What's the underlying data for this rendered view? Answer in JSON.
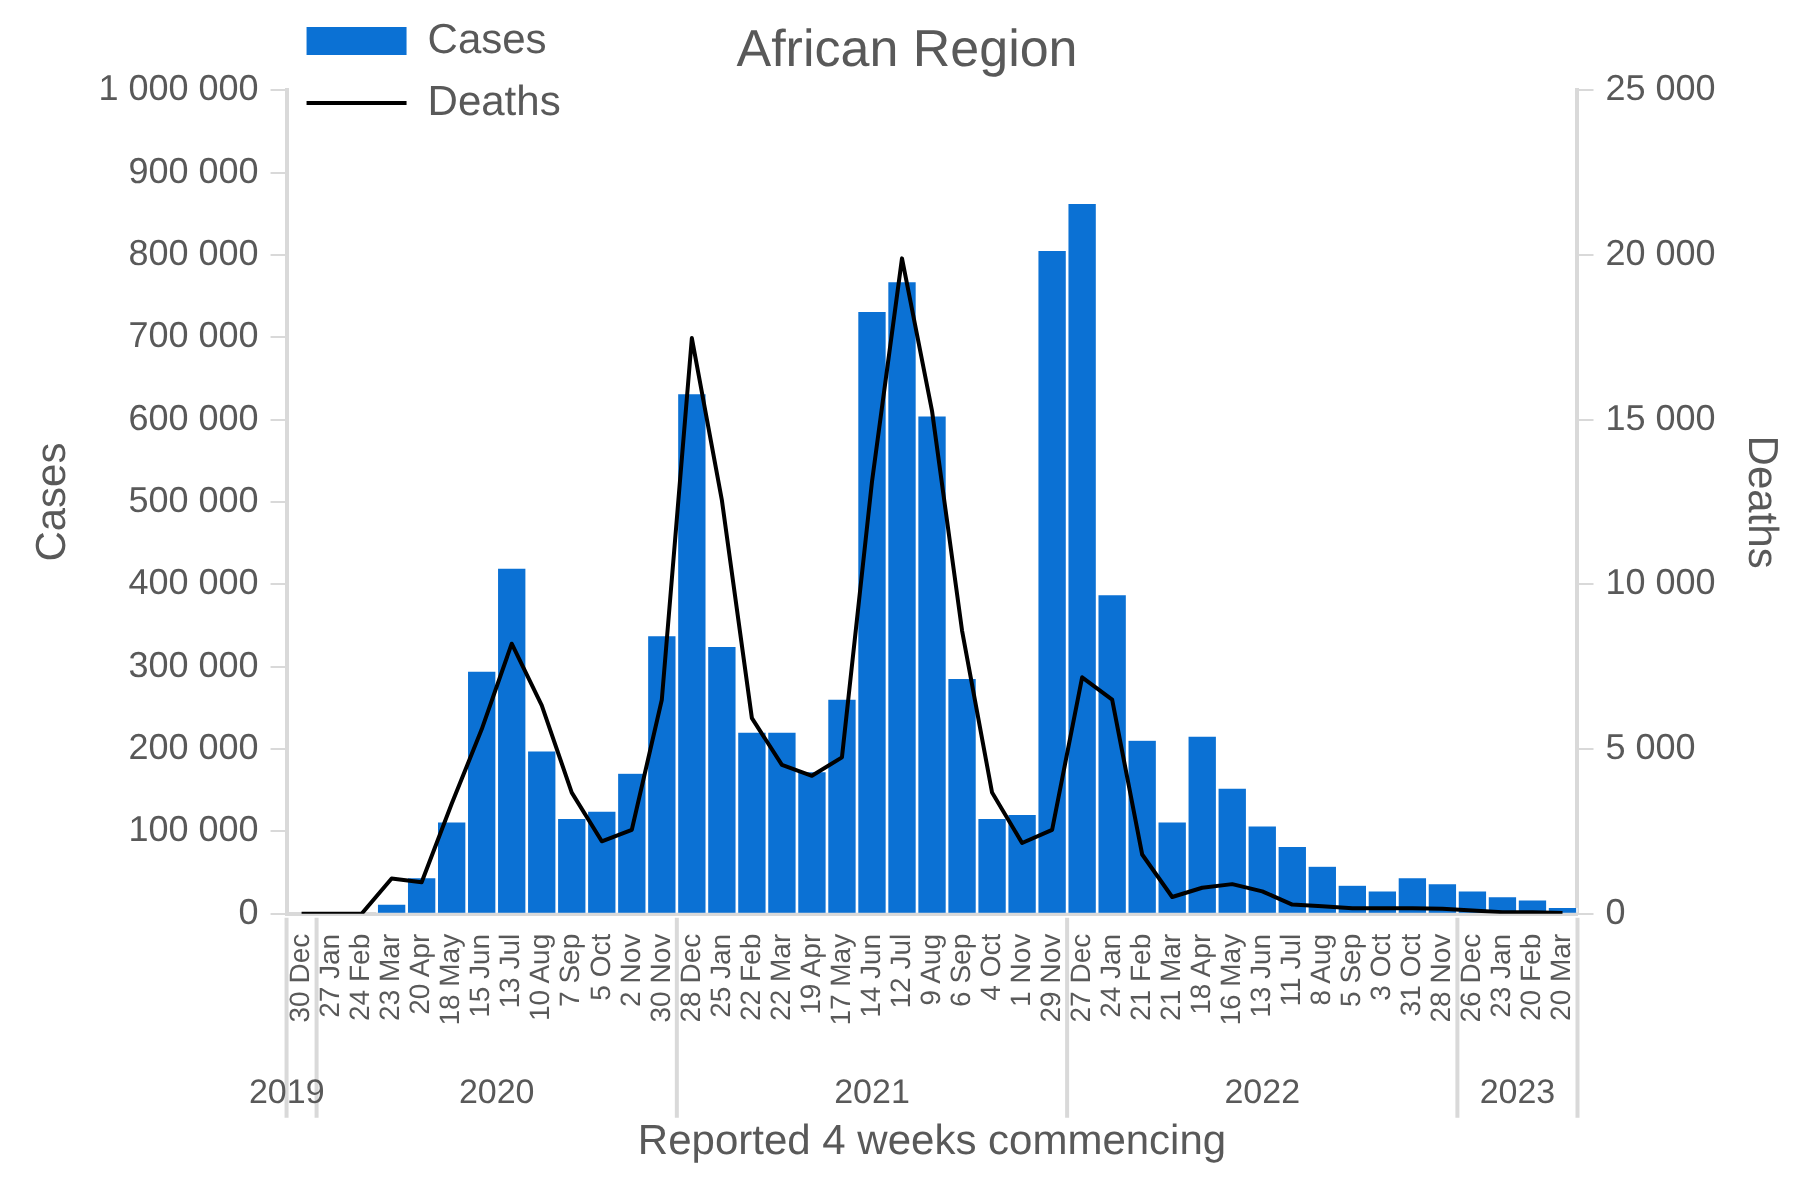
{
  "chart_data": {
    "type": "bar",
    "title": "African Region",
    "xlabel": "Reported 4 weeks commencing",
    "ylabel": "Cases",
    "y2label": "Deaths",
    "categories": [
      "30 Dec",
      "27 Jan",
      "24 Feb",
      "23 Mar",
      "20 Apr",
      "18 May",
      "15 Jun",
      "13 Jul",
      "10 Aug",
      "7 Sep",
      "5 Oct",
      "2 Nov",
      "30 Nov",
      "28 Dec",
      "25 Jan",
      "22 Feb",
      "22 Mar",
      "19 Apr",
      "17 May",
      "14 Jun",
      "12 Jul",
      "9 Aug",
      "6 Sep",
      "4 Oct",
      "1 Nov",
      "29 Nov",
      "27 Dec",
      "24 Jan",
      "21 Feb",
      "21 Mar",
      "18 Apr",
      "16 May",
      "13 Jun",
      "11 Jul",
      "8 Aug",
      "5 Sep",
      "3 Oct",
      "31 Oct",
      "28 Nov",
      "26 Dec",
      "23 Jan",
      "20 Feb",
      "20 Mar"
    ],
    "series": [
      {
        "name": "Cases",
        "color": "#0b71d4",
        "values": [
          0,
          0,
          0,
          11000,
          43000,
          111000,
          294000,
          419000,
          197000,
          115000,
          124000,
          170000,
          337000,
          631000,
          324000,
          220000,
          220000,
          172000,
          260000,
          731000,
          767000,
          604000,
          285000,
          115000,
          120000,
          805000,
          862000,
          387000,
          210000,
          111000,
          215000,
          152000,
          106000,
          81000,
          57000,
          34000,
          27000,
          43000,
          36000,
          27000,
          20000,
          16000,
          7000
        ]
      },
      {
        "name": "Deaths",
        "type": "line",
        "axis": "y2",
        "color": "#000000",
        "values": [
          0,
          0,
          0,
          1070,
          960,
          3340,
          5600,
          8200,
          6330,
          3680,
          2200,
          2550,
          6500,
          17480,
          12560,
          5940,
          4520,
          4190,
          4750,
          13120,
          19900,
          15270,
          8600,
          3680,
          2150,
          2550,
          7180,
          6500,
          1800,
          510,
          790,
          900,
          680,
          280,
          230,
          170,
          170,
          170,
          150,
          100,
          50,
          50,
          20
        ]
      }
    ],
    "ylim": [
      0,
      1000000
    ],
    "yticks": [
      {
        "value": 0,
        "label": "0"
      },
      {
        "value": 100000,
        "label": "100 000"
      },
      {
        "value": 200000,
        "label": "200 000"
      },
      {
        "value": 300000,
        "label": "300 000"
      },
      {
        "value": 400000,
        "label": "400 000"
      },
      {
        "value": 500000,
        "label": "500 000"
      },
      {
        "value": 600000,
        "label": "600 000"
      },
      {
        "value": 700000,
        "label": "700 000"
      },
      {
        "value": 800000,
        "label": "800 000"
      },
      {
        "value": 900000,
        "label": "900 000"
      },
      {
        "value": 1000000,
        "label": "1 000 000"
      }
    ],
    "y2lim": [
      0,
      25000
    ],
    "y2ticks": [
      {
        "value": 0,
        "label": "0"
      },
      {
        "value": 5000,
        "label": "5 000"
      },
      {
        "value": 10000,
        "label": "10 000"
      },
      {
        "value": 15000,
        "label": "15 000"
      },
      {
        "value": 20000,
        "label": "20 000"
      },
      {
        "value": 25000,
        "label": "25 000"
      }
    ],
    "annotations": [
      "2019",
      "2020",
      "2021",
      "2022",
      "2023"
    ],
    "legend": "top left",
    "grid": false,
    "marker": "none",
    "line_style": "solid"
  }
}
